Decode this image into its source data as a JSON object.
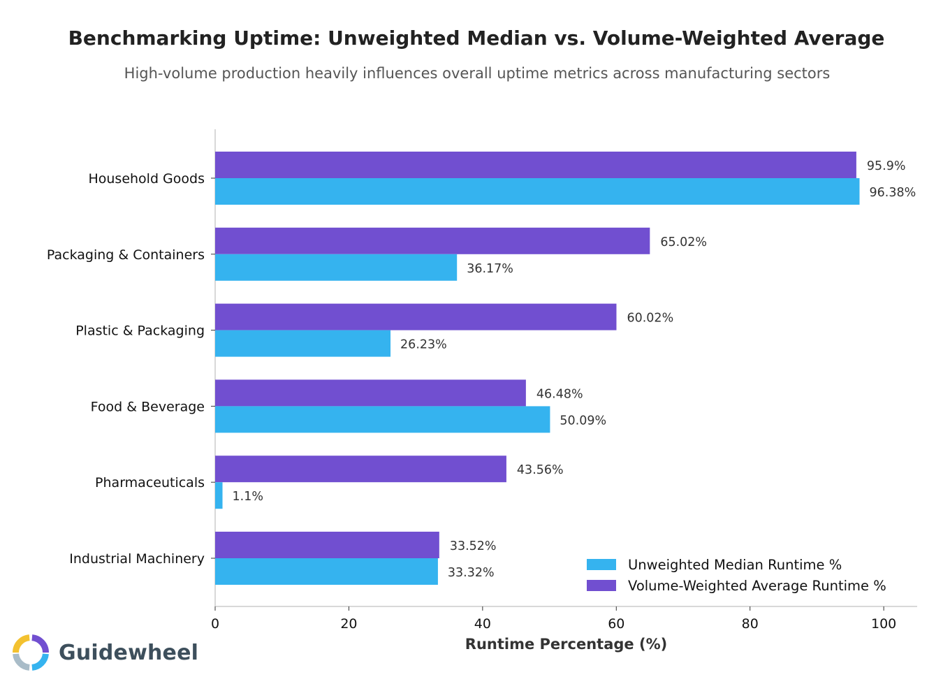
{
  "chart_data": {
    "type": "bar",
    "orientation": "horizontal",
    "title": "Benchmarking Uptime: Unweighted Median vs. Volume-Weighted Average",
    "subtitle": "High-volume production heavily influences overall uptime metrics across manufacturing sectors",
    "xlabel": "Runtime Percentage (%)",
    "ylabel": "",
    "xlim": [
      0,
      105
    ],
    "xticks": [
      0,
      20,
      40,
      60,
      80,
      100
    ],
    "categories": [
      "Household Goods",
      "Packaging & Containers",
      "Plastic & Packaging",
      "Food & Beverage",
      "Pharmaceuticals",
      "Industrial Machinery"
    ],
    "series": [
      {
        "name": "Unweighted Median Runtime %",
        "color": "#35b3ef",
        "values": [
          96.38,
          36.17,
          26.23,
          50.09,
          1.1,
          33.32
        ],
        "labels": [
          "96.38%",
          "36.17%",
          "26.23%",
          "50.09%",
          "1.1%",
          "33.32%"
        ]
      },
      {
        "name": "Volume-Weighted Average Runtime %",
        "color": "#714fd0",
        "values": [
          95.9,
          65.02,
          60.02,
          46.48,
          43.56,
          33.52
        ],
        "labels": [
          "95.9%",
          "65.02%",
          "60.02%",
          "46.48%",
          "43.56%",
          "33.52%"
        ]
      }
    ],
    "grid": false,
    "legend_position": "bottom-right"
  },
  "brand": {
    "name": "Guidewheel",
    "colors": [
      "#f3c12f",
      "#714fd0",
      "#35b3ef",
      "#a9bcc8"
    ]
  }
}
